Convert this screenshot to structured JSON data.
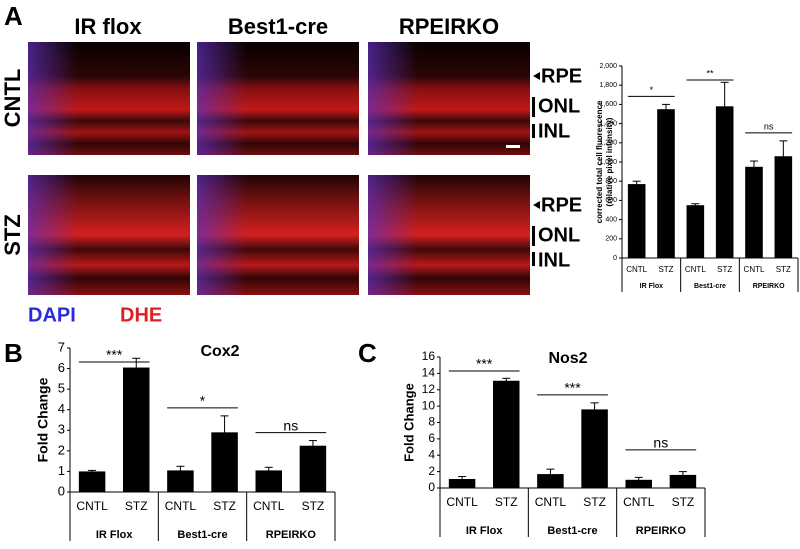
{
  "figure": {
    "panel_labels": [
      "A",
      "B",
      "C"
    ],
    "columns": [
      "IR flox",
      "Best1-cre",
      "RPEIRKO"
    ],
    "rows": [
      "CNTL",
      "STZ"
    ],
    "layers": [
      "RPE",
      "ONL",
      "INL"
    ],
    "stains": [
      "DAPI",
      "DHE"
    ]
  },
  "chart_data": [
    {
      "type": "bar",
      "ylabel": [
        "corrected total cell fluorescence",
        "(relative pixel intensity)"
      ],
      "groups": [
        "IR Flox",
        "Best1-cre",
        "RPEIRKO"
      ],
      "categories": [
        "CNTL",
        "STZ",
        "CNTL",
        "STZ",
        "CNTL",
        "STZ"
      ],
      "values": [
        770,
        1550,
        550,
        1580,
        950,
        1060
      ],
      "errors": [
        30,
        50,
        15,
        250,
        60,
        160
      ],
      "significance": [
        "*",
        "**",
        "ns"
      ],
      "color": "#000000",
      "ylim": [
        0,
        2000
      ],
      "yticks": [
        0,
        200,
        400,
        600,
        800,
        {
          "value": 1000,
          "label": "1,000"
        },
        {
          "value": 1200,
          "label": "1,200"
        },
        {
          "value": 1400,
          "label": "1,400"
        },
        {
          "value": 1600,
          "label": "1,600"
        },
        {
          "value": 1800,
          "label": "1,800"
        },
        {
          "value": 2000,
          "label": "2,000"
        }
      ]
    },
    {
      "type": "bar",
      "title": "Cox2",
      "ylabel": [
        "Fold Change"
      ],
      "groups": [
        "IR Flox",
        "Best1-cre",
        "RPEIRKO"
      ],
      "categories": [
        "CNTL",
        "STZ",
        "CNTL",
        "STZ",
        "CNTL",
        "STZ"
      ],
      "values": [
        1.0,
        6.05,
        1.05,
        2.9,
        1.05,
        2.25
      ],
      "errors": [
        0.05,
        0.45,
        0.2,
        0.8,
        0.15,
        0.25
      ],
      "significance": [
        "***",
        "*",
        "ns"
      ],
      "color": "#000000",
      "ylim": [
        0,
        7
      ],
      "yticks": [
        0,
        1,
        2,
        3,
        4,
        5,
        6,
        7
      ]
    },
    {
      "type": "bar",
      "title": "Nos2",
      "ylabel": [
        "Fold Change"
      ],
      "groups": [
        "IR Flox",
        "Best1-cre",
        "RPEIRKO"
      ],
      "categories": [
        "CNTL",
        "STZ",
        "CNTL",
        "STZ",
        "CNTL",
        "STZ"
      ],
      "values": [
        1.1,
        13.1,
        1.7,
        9.6,
        1.0,
        1.6
      ],
      "errors": [
        0.3,
        0.3,
        0.6,
        0.8,
        0.3,
        0.4
      ],
      "significance": [
        "***",
        "***",
        "ns"
      ],
      "color": "#000000",
      "ylim": [
        0,
        16
      ],
      "yticks": [
        0,
        2,
        4,
        6,
        8,
        10,
        12,
        14,
        16
      ]
    }
  ]
}
